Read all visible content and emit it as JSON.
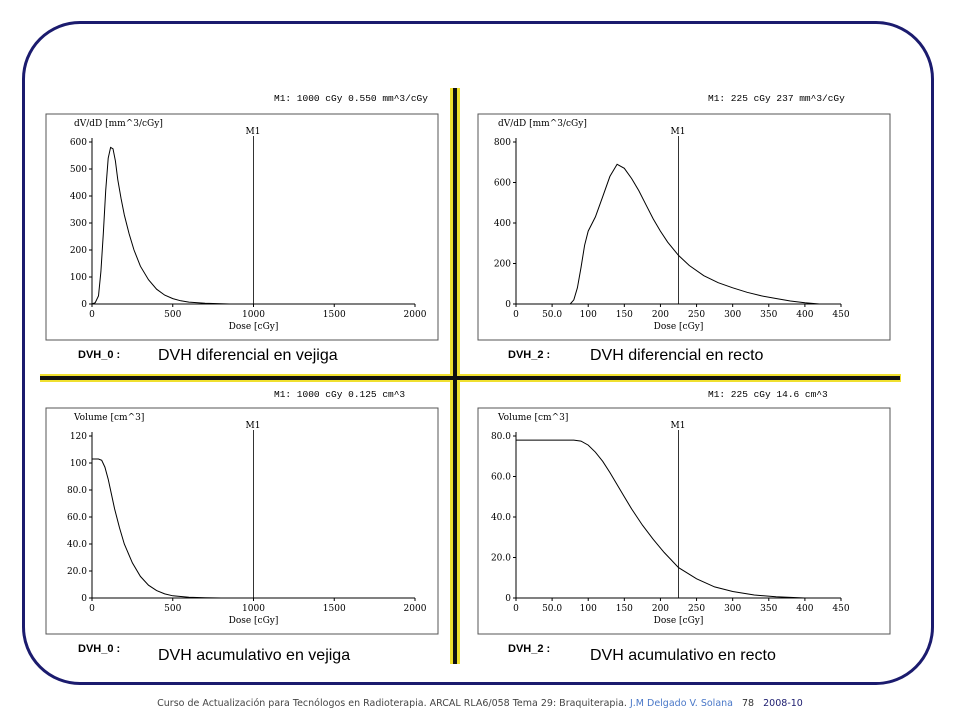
{
  "footer": {
    "course": "Curso de Actualización para Tecnólogos en Radioterapia. ARCAL RLA6/058 Tema 29: Braquiterapia.",
    "author": "J.M Delgado V. Solana",
    "page": "78",
    "year": "2008-10"
  },
  "chart_data": [
    {
      "type": "line",
      "header": "M1: 1000 cGy 0.550 mm^3/cGy",
      "ylabel": "dV/dD [mm^3/cGy]",
      "xlabel": "Dose [cGy]",
      "marker_label": "M1",
      "marker_x": 1000,
      "dvh_label": "DVH_0 :",
      "caption": "DVH diferencial en vejiga",
      "xlim": [
        0,
        2000
      ],
      "ylim": [
        0,
        600
      ],
      "xticks": [
        0,
        500,
        1000,
        1500,
        2000
      ],
      "xtick_labels": [
        "0",
        "500",
        "1000",
        "1500",
        "2000"
      ],
      "yticks": [
        0,
        100,
        200,
        300,
        400,
        500,
        600
      ],
      "ytick_labels": [
        "0",
        "100",
        "200",
        "300",
        "400",
        "500",
        "600"
      ],
      "series": [
        {
          "x": [
            0,
            20,
            40,
            55,
            70,
            85,
            100,
            115,
            130,
            145,
            160,
            180,
            200,
            230,
            260,
            300,
            350,
            400,
            450,
            500,
            550,
            600,
            700,
            800,
            850
          ],
          "values": [
            0,
            5,
            30,
            120,
            260,
            420,
            540,
            580,
            575,
            530,
            460,
            390,
            330,
            260,
            200,
            140,
            90,
            55,
            33,
            20,
            12,
            7,
            3,
            1,
            0
          ]
        }
      ]
    },
    {
      "type": "line",
      "header": "M1: 225 cGy 237 mm^3/cGy",
      "ylabel": "dV/dD [mm^3/cGy]",
      "xlabel": "Dose [cGy]",
      "marker_label": "M1",
      "marker_x": 225,
      "dvh_label": "DVH_2 :",
      "caption": "DVH diferencial en recto",
      "xlim": [
        0,
        450
      ],
      "ylim": [
        0,
        800
      ],
      "xticks": [
        0,
        50,
        100,
        150,
        200,
        250,
        300,
        350,
        400,
        450
      ],
      "xtick_labels": [
        "0",
        "50.0",
        "100",
        "150",
        "200",
        "250",
        "300",
        "350",
        "400",
        "450"
      ],
      "yticks": [
        0,
        200,
        400,
        600,
        800
      ],
      "ytick_labels": [
        "0",
        "200",
        "400",
        "600",
        "800"
      ],
      "series": [
        {
          "x": [
            0,
            75,
            80,
            85,
            90,
            95,
            100,
            110,
            120,
            130,
            140,
            150,
            160,
            170,
            180,
            190,
            200,
            210,
            225,
            240,
            260,
            280,
            300,
            320,
            340,
            360,
            380,
            400,
            420
          ],
          "values": [
            0,
            0,
            20,
            80,
            180,
            290,
            360,
            430,
            530,
            630,
            690,
            670,
            620,
            560,
            490,
            420,
            360,
            305,
            240,
            190,
            140,
            105,
            80,
            58,
            40,
            27,
            15,
            6,
            0
          ]
        }
      ]
    },
    {
      "type": "line",
      "header": "M1: 1000 cGy 0.125 cm^3",
      "ylabel": "Volume [cm^3]",
      "xlabel": "Dose [cGy]",
      "marker_label": "M1",
      "marker_x": 1000,
      "dvh_label": "DVH_0 :",
      "caption": "DVH acumulativo en vejiga",
      "xlim": [
        0,
        2000
      ],
      "ylim": [
        0,
        120
      ],
      "xticks": [
        0,
        500,
        1000,
        1500,
        2000
      ],
      "xtick_labels": [
        "0",
        "500",
        "1000",
        "1500",
        "2000"
      ],
      "yticks": [
        0,
        20,
        40,
        60,
        80,
        100,
        120
      ],
      "ytick_labels": [
        "0",
        "20.0",
        "40.0",
        "60.0",
        "80.0",
        "100",
        "120"
      ],
      "series": [
        {
          "x": [
            0,
            40,
            60,
            80,
            100,
            120,
            140,
            170,
            200,
            250,
            300,
            350,
            400,
            450,
            500,
            600,
            700,
            800
          ],
          "values": [
            103,
            103,
            102,
            97,
            88,
            77,
            66,
            52,
            40,
            26,
            16,
            9.5,
            5.5,
            3,
            1.6,
            0.5,
            0.2,
            0
          ]
        }
      ]
    },
    {
      "type": "line",
      "header": "M1: 225 cGy 14.6 cm^3",
      "ylabel": "Volume [cm^3]",
      "xlabel": "Dose [cGy]",
      "marker_label": "M1",
      "marker_x": 225,
      "dvh_label": "DVH_2 :",
      "caption": "DVH acumulativo en recto",
      "xlim": [
        0,
        450
      ],
      "ylim": [
        0,
        80
      ],
      "xticks": [
        0,
        50,
        100,
        150,
        200,
        250,
        300,
        350,
        400,
        450
      ],
      "xtick_labels": [
        "0",
        "50.0",
        "100",
        "150",
        "200",
        "250",
        "300",
        "350",
        "400",
        "450"
      ],
      "yticks": [
        0,
        20,
        40,
        60,
        80
      ],
      "ytick_labels": [
        "0",
        "20.0",
        "40.0",
        "60.0",
        "80.0"
      ],
      "series": [
        {
          "x": [
            0,
            80,
            90,
            100,
            110,
            120,
            130,
            140,
            150,
            160,
            175,
            190,
            205,
            225,
            250,
            275,
            300,
            330,
            360,
            400
          ],
          "values": [
            78,
            78,
            77.5,
            75.5,
            72,
            67.5,
            62,
            56,
            50,
            44,
            36,
            29,
            22.5,
            15,
            9.5,
            5.5,
            3.2,
            1.5,
            0.6,
            0
          ]
        }
      ]
    }
  ]
}
